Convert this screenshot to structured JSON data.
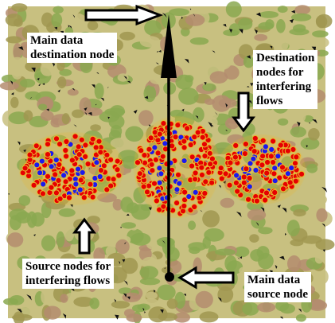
{
  "labels": {
    "main_destination": "Main data\ndestination node",
    "interfering_destinations": "Destination\nnodes for\ninterfering\nflows",
    "interfering_sources": "Source nodes for\ninterfering flows",
    "main_source": "Main data\nsource node"
  },
  "colors": {
    "frame": "#ffffff",
    "field_light": "#c8c080",
    "field_green": "#8aa850",
    "field_olive": "#a09650",
    "field_tan": "#b48c6e",
    "hole": "#111111",
    "node_red": "#e60000",
    "node_blue": "#1a1aee",
    "node_ring": "#e8b830",
    "path": "#000000",
    "arrow_fill": "#ffffff",
    "arrow_stroke": "#000000"
  }
}
